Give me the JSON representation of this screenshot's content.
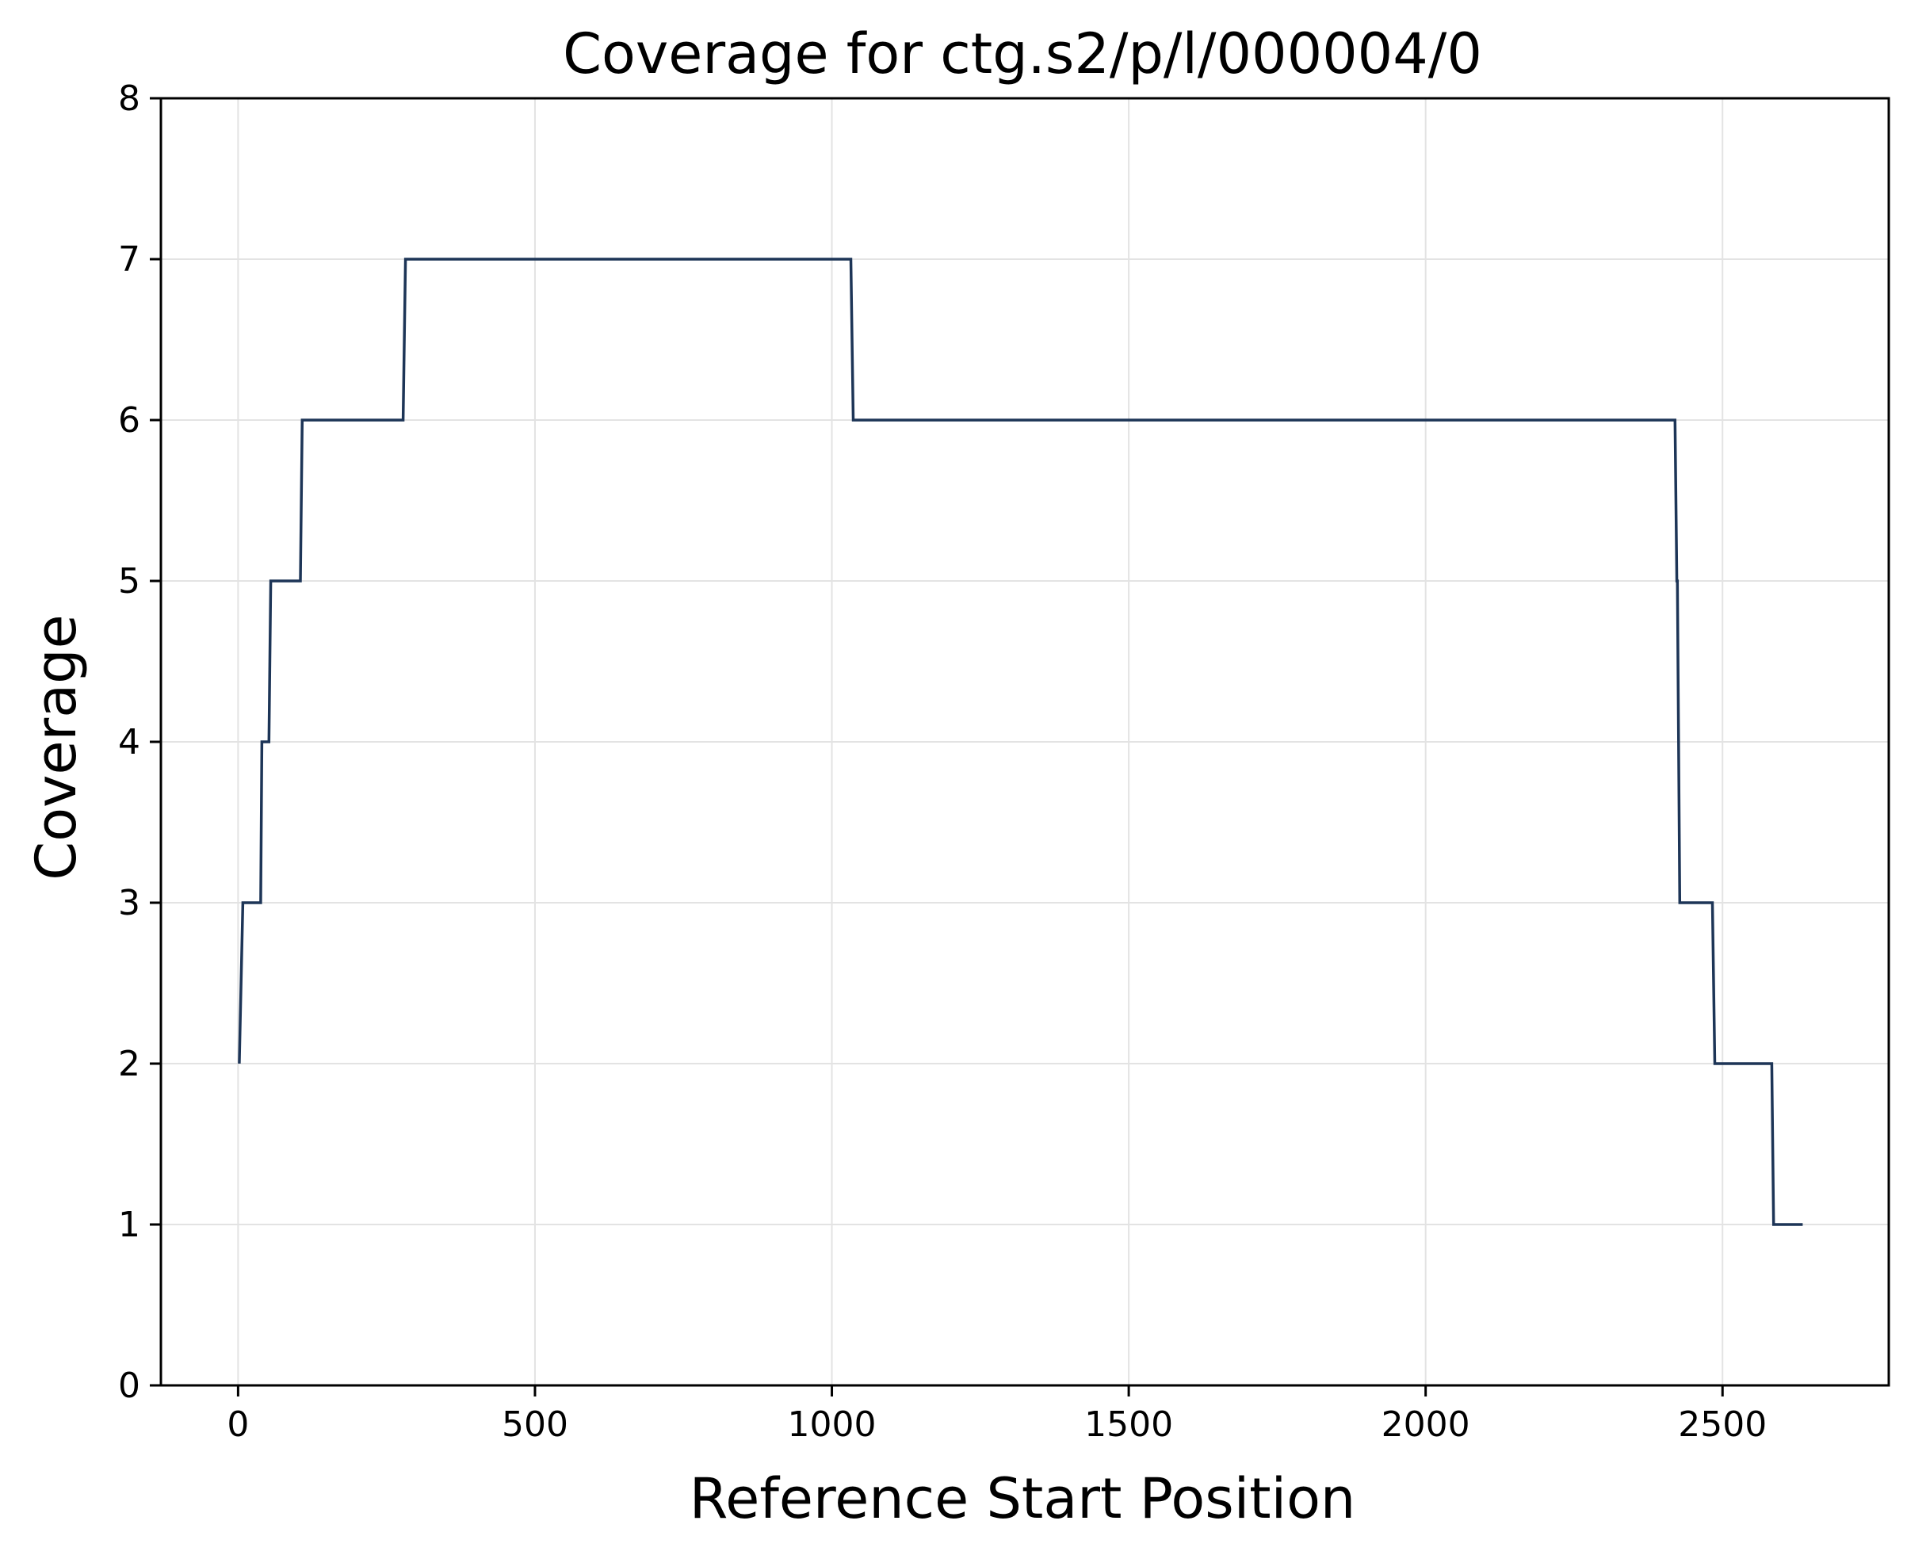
{
  "chart_data": {
    "type": "line",
    "step": true,
    "title": "Coverage for ctg.s2/p/l/000004/0",
    "xlabel": "Reference Start Position",
    "ylabel": "Coverage",
    "xlim": [
      -130,
      2780
    ],
    "ylim": [
      0,
      8
    ],
    "xticks": [
      0,
      500,
      1000,
      1500,
      2000,
      2500
    ],
    "yticks": [
      0,
      1,
      2,
      3,
      4,
      5,
      6,
      7,
      8
    ],
    "grid": true,
    "line_color": "#1d3557",
    "series": [
      {
        "points": [
          [
            2,
            2
          ],
          [
            8,
            3
          ],
          [
            38,
            3
          ],
          [
            40,
            4
          ],
          [
            52,
            4
          ],
          [
            55,
            5
          ],
          [
            105,
            5
          ],
          [
            108,
            6
          ],
          [
            278,
            6
          ],
          [
            282,
            7
          ],
          [
            1032,
            7
          ],
          [
            1036,
            6
          ],
          [
            2420,
            6
          ],
          [
            2423,
            5
          ],
          [
            2424,
            5
          ],
          [
            2428,
            3
          ],
          [
            2483,
            3
          ],
          [
            2487,
            2
          ],
          [
            2583,
            2
          ],
          [
            2586,
            1
          ],
          [
            2635,
            1
          ]
        ]
      }
    ]
  }
}
